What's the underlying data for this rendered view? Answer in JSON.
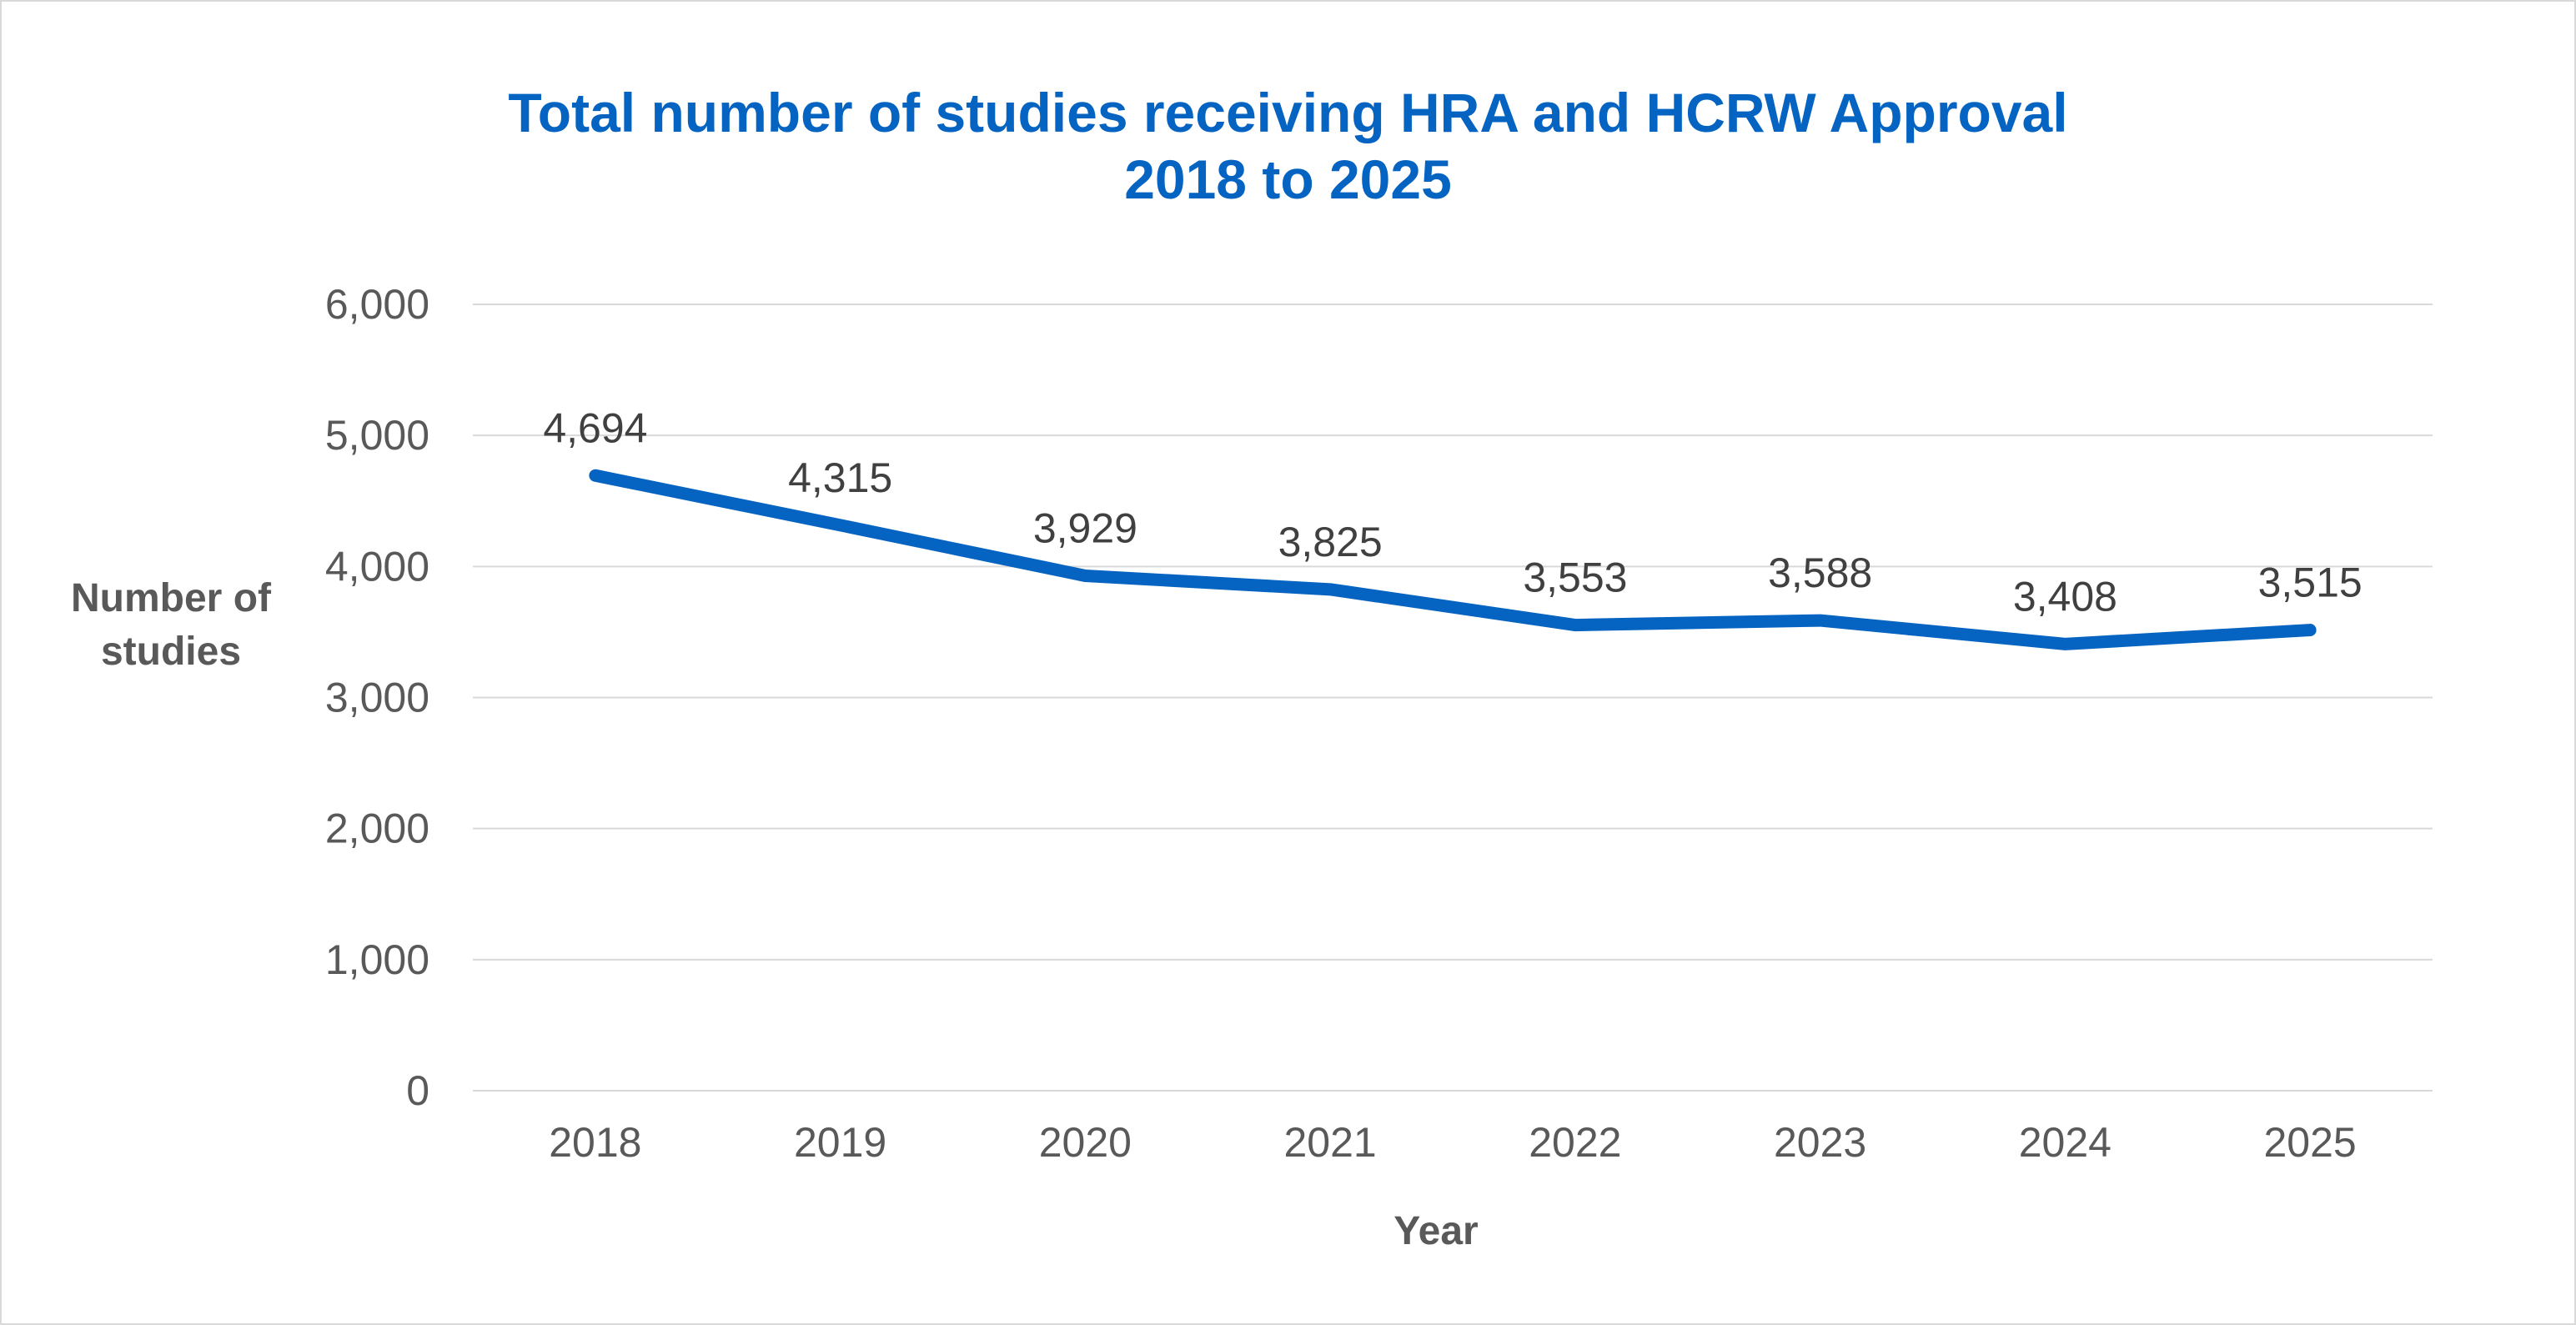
{
  "colors": {
    "accent": "#0563C1",
    "gridline": "#d9d9d9",
    "axis_text": "#595959",
    "label_text": "#404040"
  },
  "chart_data": {
    "type": "line",
    "title": [
      "Total number of studies receiving HRA and HCRW Approval",
      "2018 to 2025"
    ],
    "xlabel": "Year",
    "ylabel": [
      "Number of",
      "studies"
    ],
    "categories": [
      "2018",
      "2019",
      "2020",
      "2021",
      "2022",
      "2023",
      "2024",
      "2025"
    ],
    "series": [
      {
        "values": [
          4694,
          4315,
          3929,
          3825,
          3553,
          3588,
          3408,
          3515
        ],
        "data_labels": [
          "4,694",
          "4,315",
          "3,929",
          "3,825",
          "3,553",
          "3,588",
          "3,408",
          "3,515"
        ]
      }
    ],
    "ylim": [
      0,
      6000
    ],
    "yticks": [
      0,
      1000,
      2000,
      3000,
      4000,
      5000,
      6000
    ],
    "ytick_labels": [
      "0",
      "1,000",
      "2,000",
      "3,000",
      "4,000",
      "5,000",
      "6,000"
    ],
    "grid": true,
    "legend": "none"
  }
}
